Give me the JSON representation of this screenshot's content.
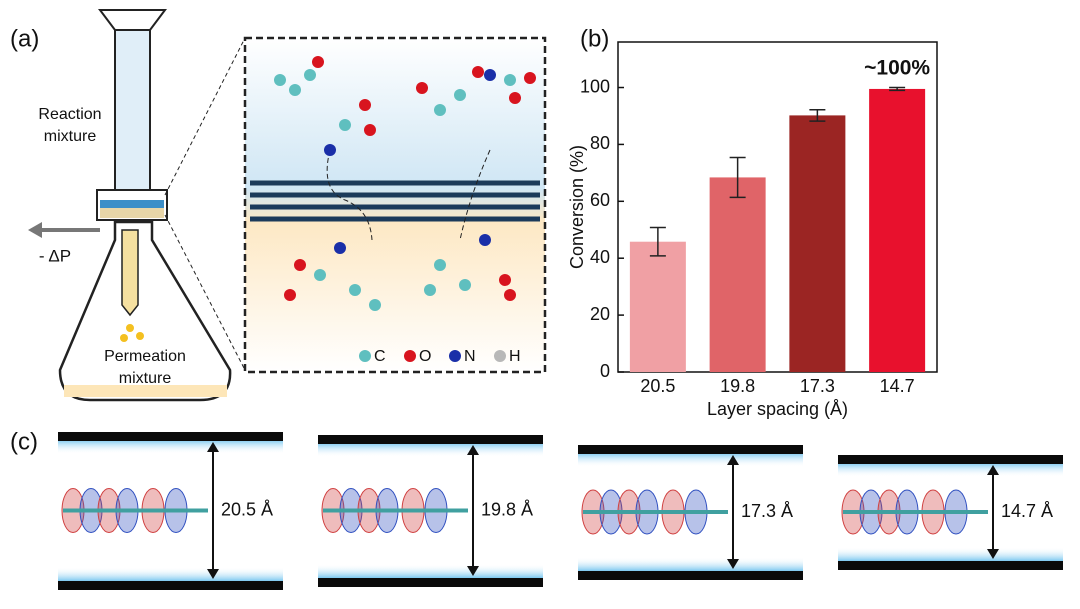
{
  "panel_labels": [
    "(a)",
    "(b)",
    "(c)"
  ],
  "panel_a": {
    "reaction": [
      "Reaction",
      "mixture"
    ],
    "pressure": "- ΔP",
    "permeation": [
      "Permeation",
      "mixture"
    ],
    "legend": [
      {
        "name": "C",
        "color": "#5fbfbf"
      },
      {
        "name": "O",
        "color": "#d8141e"
      },
      {
        "name": "N",
        "color": "#1a2fa8"
      },
      {
        "name": "H",
        "color": "#b8b8b8"
      }
    ]
  },
  "chart_data": {
    "type": "bar",
    "categories": [
      "20.5",
      "19.8",
      "17.3",
      "14.7"
    ],
    "values": [
      45.8,
      68.4,
      90.2,
      99.5
    ],
    "errors": [
      5,
      7,
      2,
      0.5
    ],
    "colors": [
      "#f0a0a4",
      "#e06468",
      "#9b2523",
      "#e8112d"
    ],
    "ylim": [
      0,
      116
    ],
    "yticks": [
      0,
      20,
      40,
      60,
      80,
      100
    ],
    "ylabel": "Conversion (%)",
    "xlabel": "Layer spacing (Å)",
    "annotation": {
      "text": "~100%",
      "color": "#e8112d"
    }
  },
  "panel_c": {
    "spacings": [
      "20.5 Å",
      "19.8 Å",
      "17.3 Å",
      "14.7 Å"
    ]
  }
}
